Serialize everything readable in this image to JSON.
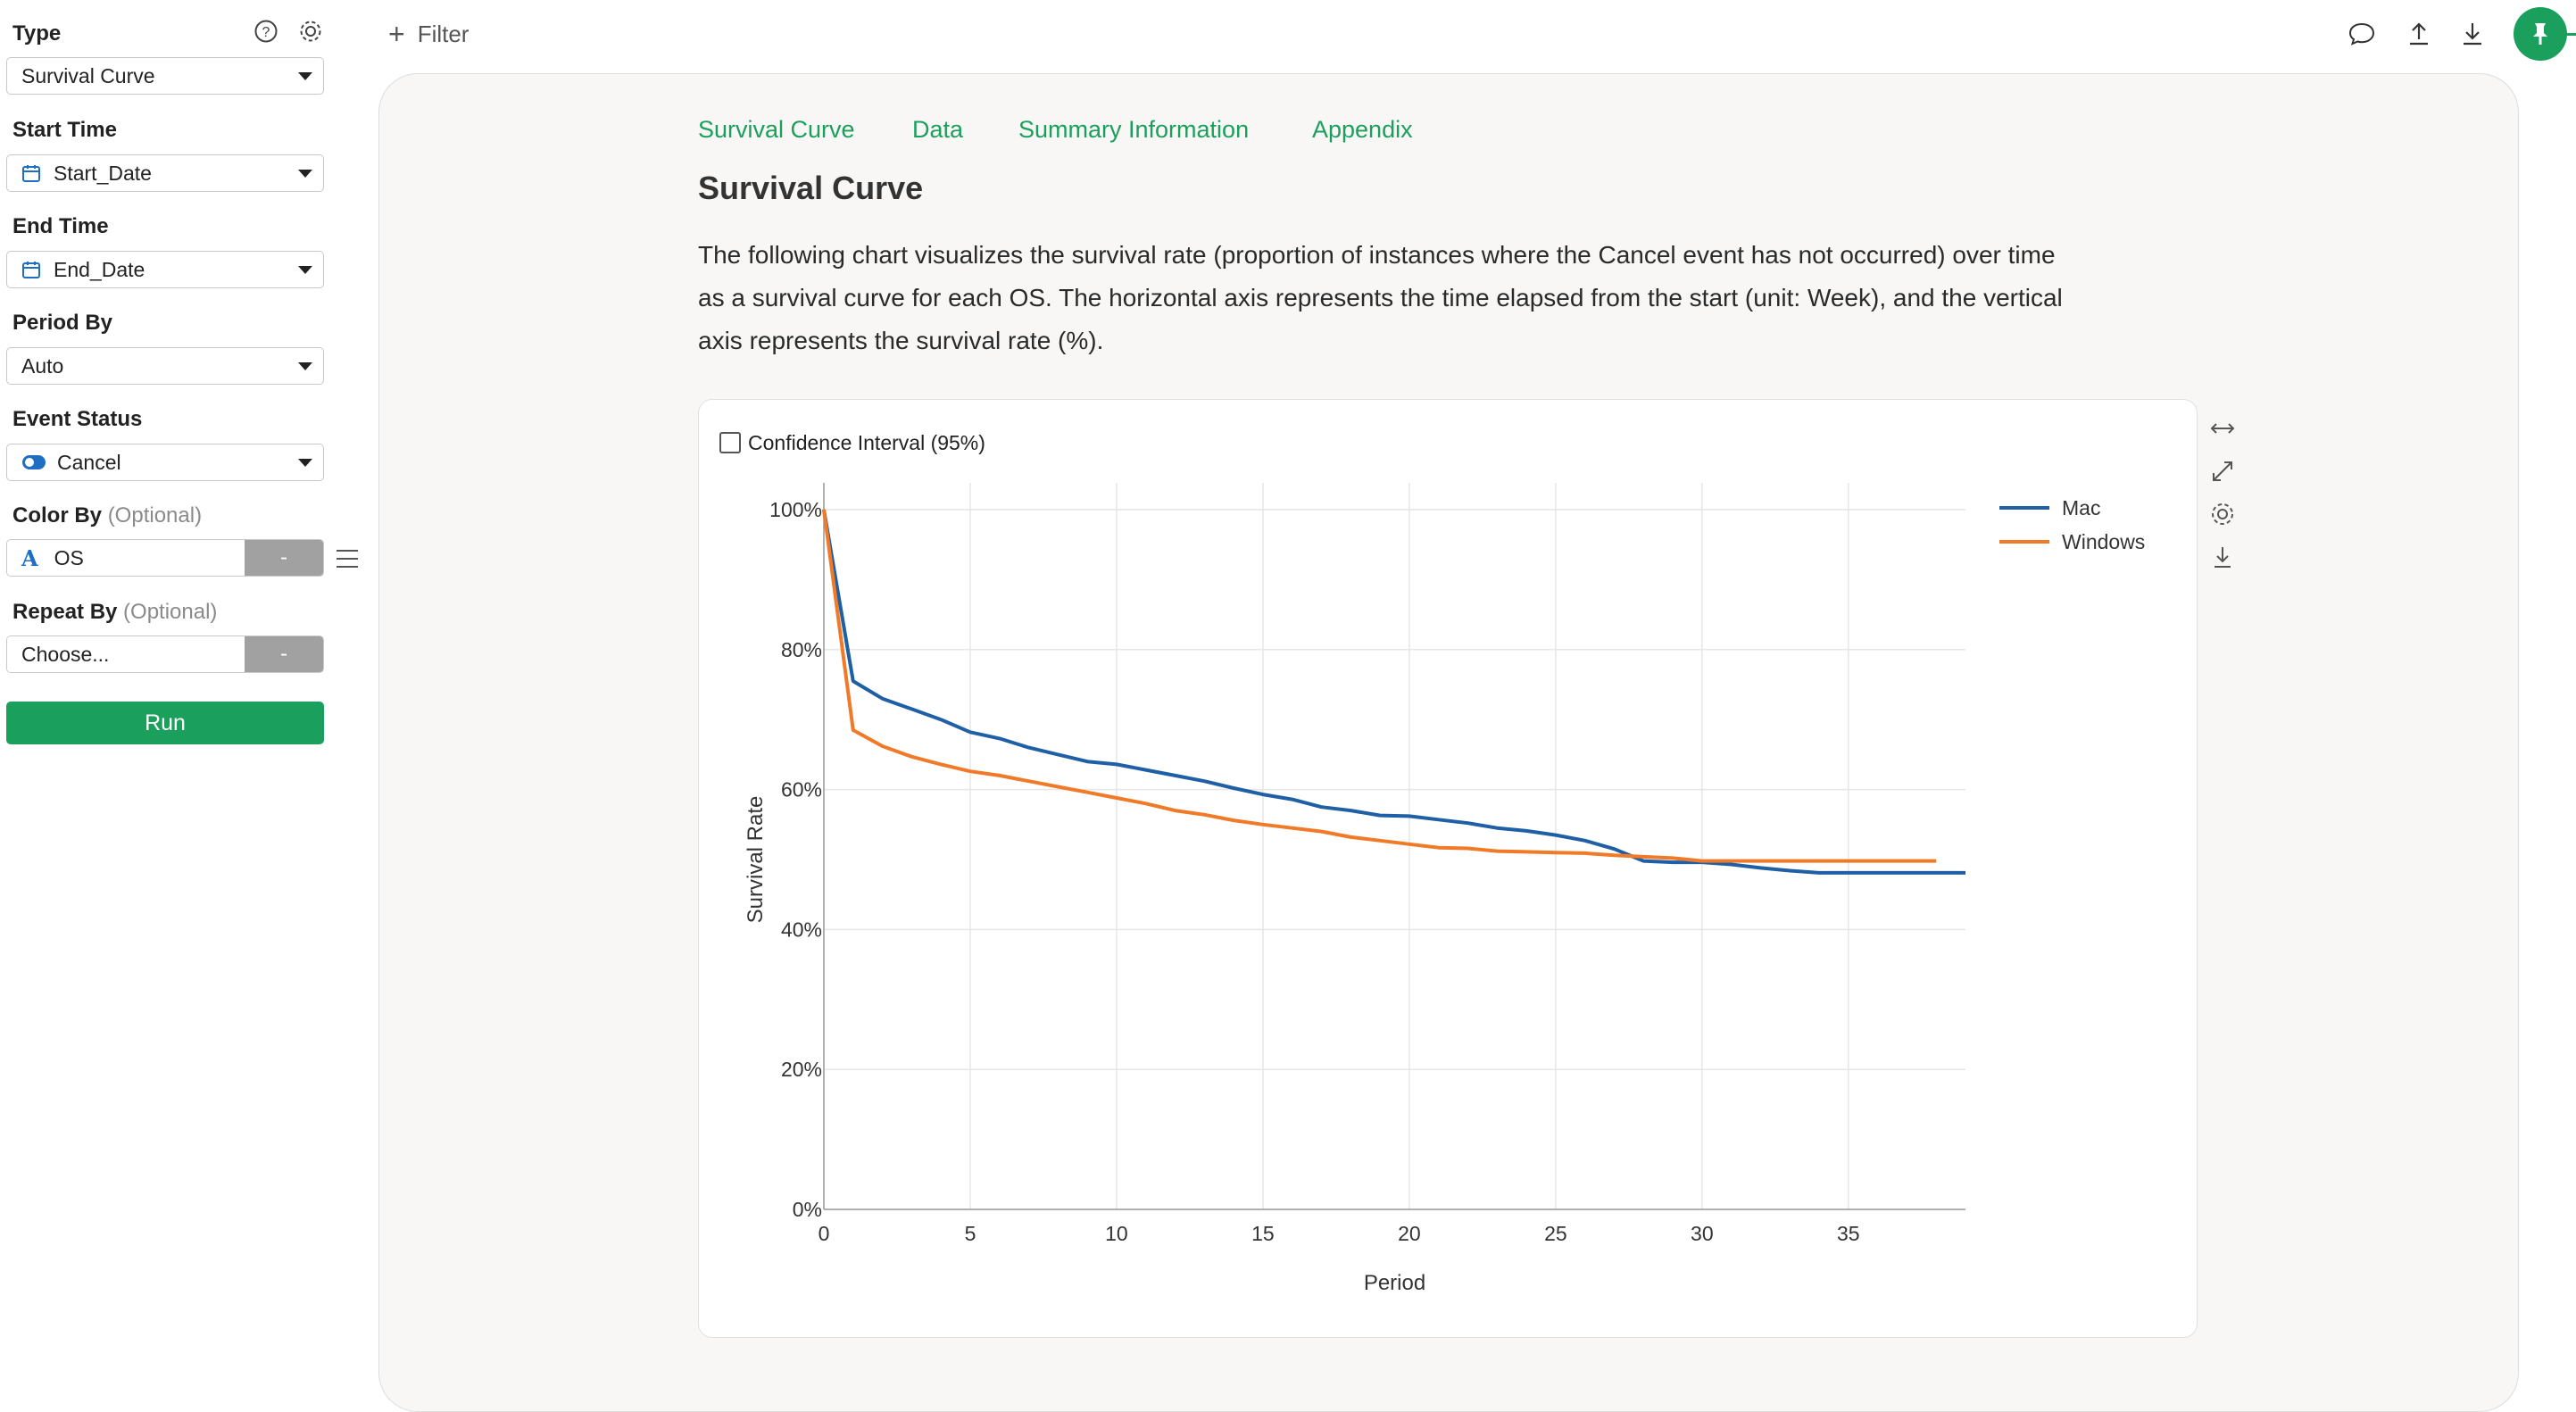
{
  "sidebar": {
    "type": {
      "label": "Type",
      "value": "Survival Curve"
    },
    "start_time": {
      "label": "Start Time",
      "value": "Start_Date"
    },
    "end_time": {
      "label": "End Time",
      "value": "End_Date"
    },
    "period_by": {
      "label": "Period By",
      "value": "Auto"
    },
    "event_status": {
      "label": "Event Status",
      "value": "Cancel"
    },
    "color_by": {
      "label": "Color By",
      "optional": "(Optional)",
      "value": "OS",
      "dash": "-"
    },
    "repeat_by": {
      "label": "Repeat By",
      "optional": "(Optional)",
      "value": "Choose...",
      "dash": "-"
    },
    "run_label": "Run"
  },
  "topbar": {
    "filter_label": "Filter"
  },
  "tabs": [
    "Survival Curve",
    "Data",
    "Summary Information",
    "Appendix"
  ],
  "section_title": "Survival Curve",
  "description": [
    "The following chart visualizes the survival rate (proportion of instances where the Cancel event has not occurred) over time",
    "as a survival curve for each OS. The horizontal axis represents the time elapsed from the start (unit: Week), and the vertical",
    "axis represents the survival rate (%)."
  ],
  "confidence_interval_label": "Confidence Interval (95%)",
  "colors": {
    "accent": "#1aa05c",
    "mac": "#1f5fa6",
    "windows": "#f07a28"
  },
  "chart_data": {
    "type": "line",
    "xlabel": "Period",
    "ylabel": "Survival Rate",
    "xlim": [
      0,
      39
    ],
    "ylim": [
      0,
      100
    ],
    "x_ticks": [
      0,
      5,
      10,
      15,
      20,
      25,
      30,
      35
    ],
    "y_ticks": [
      "0%",
      "20%",
      "40%",
      "60%",
      "80%",
      "100%"
    ],
    "grid": true,
    "legend_position": "top-right",
    "series": [
      {
        "name": "Mac",
        "color": "#1f5fa6",
        "x": [
          0,
          1,
          2,
          3,
          4,
          5,
          6,
          7,
          8,
          9,
          10,
          11,
          12,
          13,
          14,
          15,
          16,
          17,
          18,
          19,
          20,
          21,
          22,
          23,
          24,
          25,
          26,
          27,
          28,
          29,
          30,
          31,
          32,
          33,
          34,
          35,
          36,
          37,
          38,
          39
        ],
        "y": [
          100,
          75.5,
          73,
          71.5,
          70,
          68.2,
          67.3,
          66,
          65,
          64,
          63.6,
          62.8,
          62,
          61.2,
          60.2,
          59.3,
          58.6,
          57.5,
          57,
          56.3,
          56.2,
          55.7,
          55.2,
          54.5,
          54.1,
          53.5,
          52.7,
          51.5,
          49.8,
          49.6,
          49.6,
          49.3,
          48.8,
          48.4,
          48.1,
          48.1,
          48.1,
          48.1,
          48.1,
          48.1
        ]
      },
      {
        "name": "Windows",
        "color": "#f07a28",
        "x": [
          0,
          1,
          2,
          3,
          4,
          5,
          6,
          7,
          8,
          9,
          10,
          11,
          12,
          13,
          14,
          15,
          16,
          17,
          18,
          19,
          20,
          21,
          22,
          23,
          24,
          25,
          26,
          27,
          28,
          29,
          30,
          31,
          32,
          33,
          34,
          35,
          36,
          37,
          38
        ],
        "y": [
          100,
          68.5,
          66.2,
          64.7,
          63.6,
          62.6,
          62,
          61.2,
          60.4,
          59.6,
          58.8,
          58,
          57,
          56.4,
          55.6,
          55,
          54.5,
          54,
          53.2,
          52.7,
          52.2,
          51.7,
          51.6,
          51.2,
          51.1,
          51,
          50.9,
          50.6,
          50.4,
          50.2,
          49.8,
          49.8,
          49.8,
          49.8,
          49.8,
          49.8,
          49.8,
          49.8,
          49.8
        ]
      }
    ]
  }
}
